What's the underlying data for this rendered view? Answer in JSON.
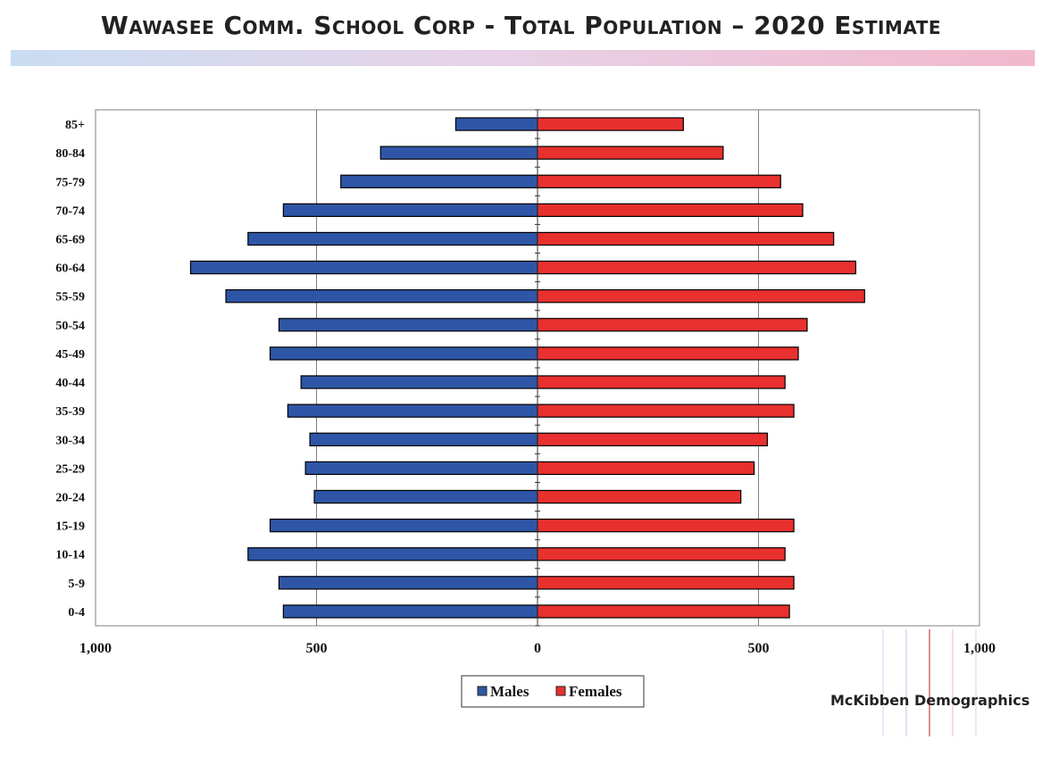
{
  "title": "Wawasee Comm. School Corp - Total Population – 2020 Estimate",
  "brand": "McKibben Demographics",
  "colors": {
    "males": "#2f56a6",
    "females": "#e8302f",
    "grid": "#808080",
    "border": "#000000"
  },
  "chart_data": {
    "type": "bar",
    "orientation": "horizontal-population-pyramid",
    "title": "Wawasee Comm. School Corp - Total Population – 2020 Estimate",
    "categories": [
      "85+",
      "80-84",
      "75-79",
      "70-74",
      "65-69",
      "60-64",
      "55-59",
      "50-54",
      "45-49",
      "40-44",
      "35-39",
      "30-34",
      "25-29",
      "20-24",
      "15-19",
      "10-14",
      "5-9",
      "0-4"
    ],
    "series": [
      {
        "name": "Males",
        "values": [
          185,
          355,
          445,
          575,
          655,
          785,
          705,
          585,
          605,
          535,
          565,
          515,
          525,
          505,
          605,
          655,
          585,
          575
        ]
      },
      {
        "name": "Females",
        "values": [
          330,
          420,
          550,
          600,
          670,
          720,
          740,
          610,
          590,
          560,
          580,
          520,
          490,
          460,
          580,
          560,
          580,
          570
        ]
      }
    ],
    "xlim": [
      -1000,
      1000
    ],
    "xticks": [
      -1000,
      -500,
      0,
      500,
      1000
    ],
    "xtick_labels": [
      "1,000",
      "500",
      "0",
      "500",
      "1,000"
    ],
    "grid": true,
    "legend": [
      "Males",
      "Females"
    ],
    "legend_position": "bottom-center"
  }
}
